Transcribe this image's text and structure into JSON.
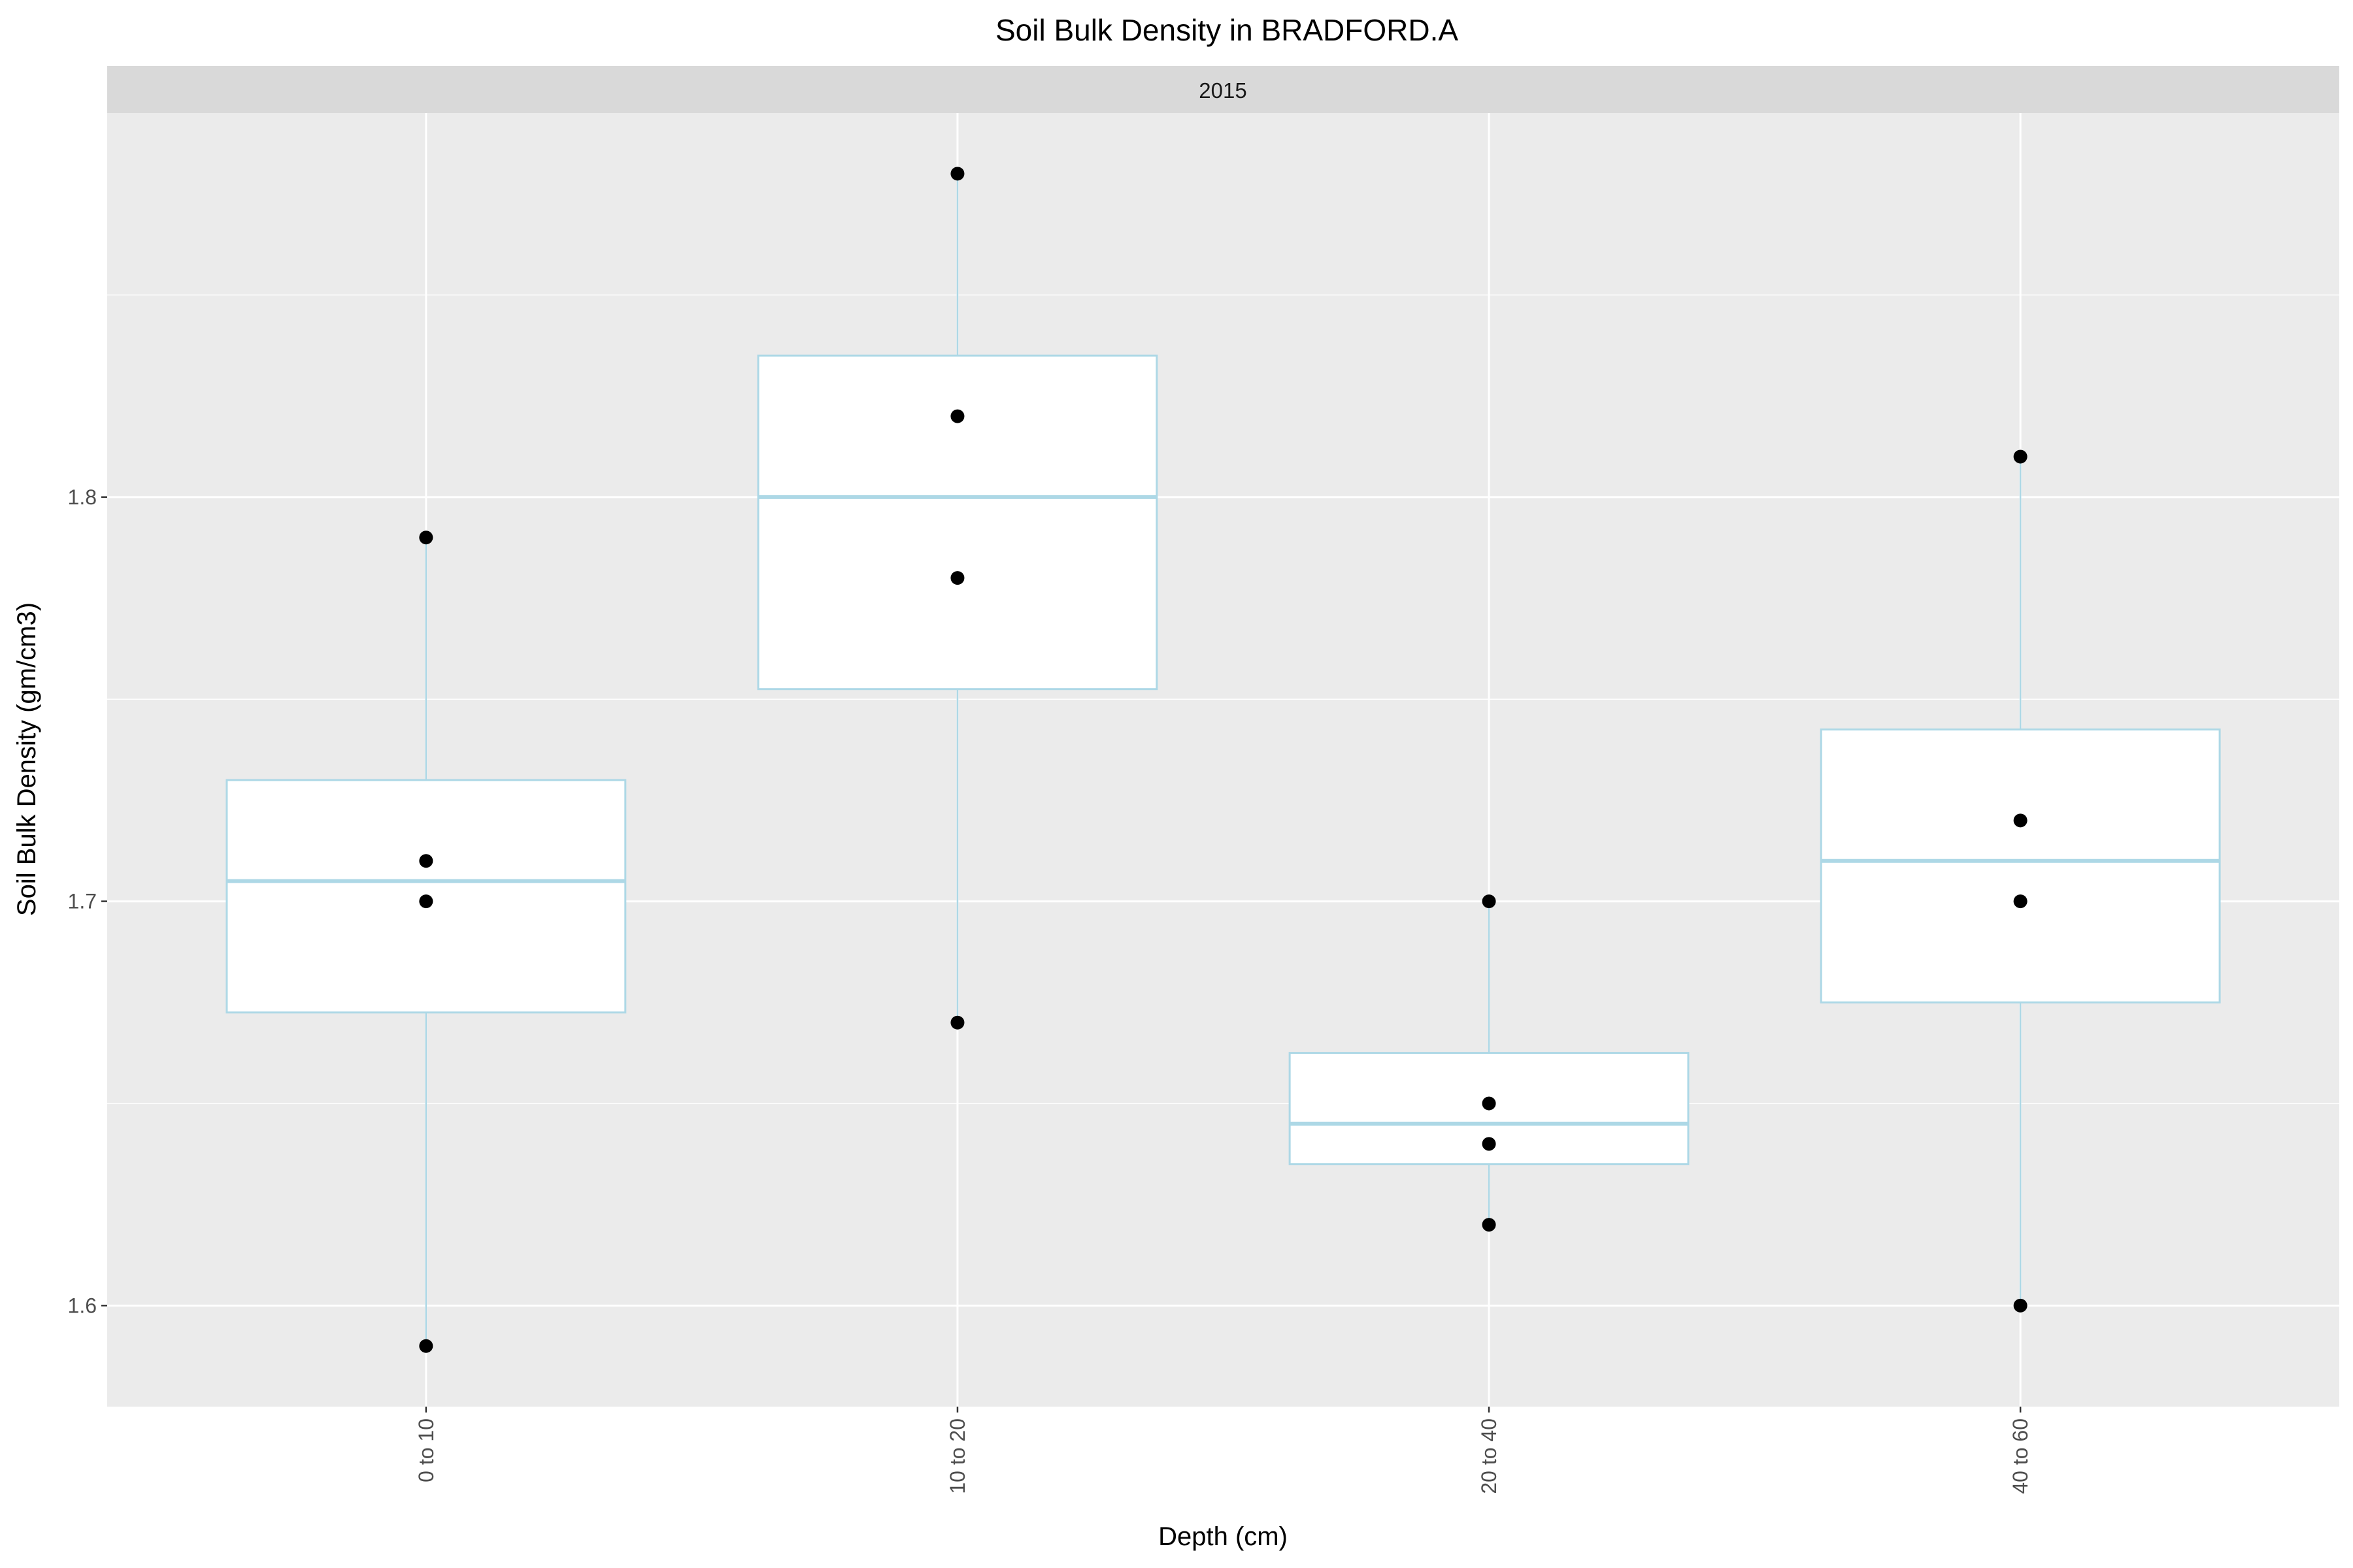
{
  "chart_data": {
    "type": "box",
    "title": "Soil Bulk Density in BRADFORD.A",
    "facet": "2015",
    "xlabel": "Depth (cm)",
    "ylabel": "Soil Bulk Density (gm/cm3)",
    "categories": [
      "0 to 10",
      "10 to 20",
      "20 to 40",
      "40 to 60"
    ],
    "ylim": [
      1.575,
      1.895
    ],
    "yticks": [
      1.6,
      1.7,
      1.8
    ],
    "ytick_labels": [
      "1.6",
      "1.7",
      "1.8"
    ],
    "grid": true,
    "boxes": [
      {
        "category": "0 to 10",
        "min": 1.59,
        "q1": 1.6725,
        "median": 1.705,
        "q3": 1.73,
        "max": 1.79,
        "points": [
          1.79,
          1.71,
          1.7,
          1.59
        ]
      },
      {
        "category": "10 to 20",
        "min": 1.67,
        "q1": 1.7525,
        "median": 1.8,
        "q3": 1.835,
        "max": 1.88,
        "points": [
          1.88,
          1.82,
          1.78,
          1.67
        ]
      },
      {
        "category": "20 to 40",
        "min": 1.62,
        "q1": 1.635,
        "median": 1.645,
        "q3": 1.6625,
        "max": 1.7,
        "points": [
          1.7,
          1.65,
          1.64,
          1.62
        ]
      },
      {
        "category": "40 to 60",
        "min": 1.6,
        "q1": 1.675,
        "median": 1.71,
        "q3": 1.7425,
        "max": 1.81,
        "points": [
          1.81,
          1.72,
          1.7,
          1.6
        ]
      }
    ],
    "colors": {
      "panel": "#ebebeb",
      "strip": "#d9d9d9",
      "grid": "#ffffff",
      "box_outline": "#add8e6",
      "box_fill": "#ffffff",
      "point": "#000000",
      "tick": "#333333"
    }
  }
}
